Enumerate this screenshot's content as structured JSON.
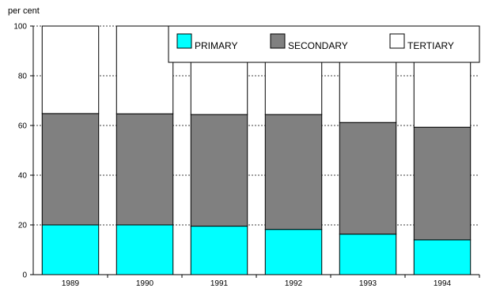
{
  "chart_data": {
    "type": "bar",
    "stacked": true,
    "unit_label": "per cent",
    "categories": [
      "1989",
      "1990",
      "1991",
      "1992",
      "1993",
      "1994"
    ],
    "series": [
      {
        "name": "PRIMARY",
        "color": "#00ffff",
        "values": [
          20,
          20,
          19.5,
          18.2,
          16.3,
          14
        ]
      },
      {
        "name": "SECONDARY",
        "color": "#808080",
        "values": [
          44.8,
          44.7,
          44.9,
          46.2,
          44.9,
          45.3
        ]
      },
      {
        "name": "TERTIARY",
        "color": "#ffffff",
        "values": [
          35.2,
          35.3,
          35.6,
          35.6,
          38.8,
          40.7
        ]
      }
    ],
    "ylim": [
      0,
      100
    ],
    "yticks": [
      "0",
      "20",
      "40",
      "60",
      "80",
      "100"
    ],
    "grid": "horizontal dashed",
    "legend_position": "top-right"
  }
}
